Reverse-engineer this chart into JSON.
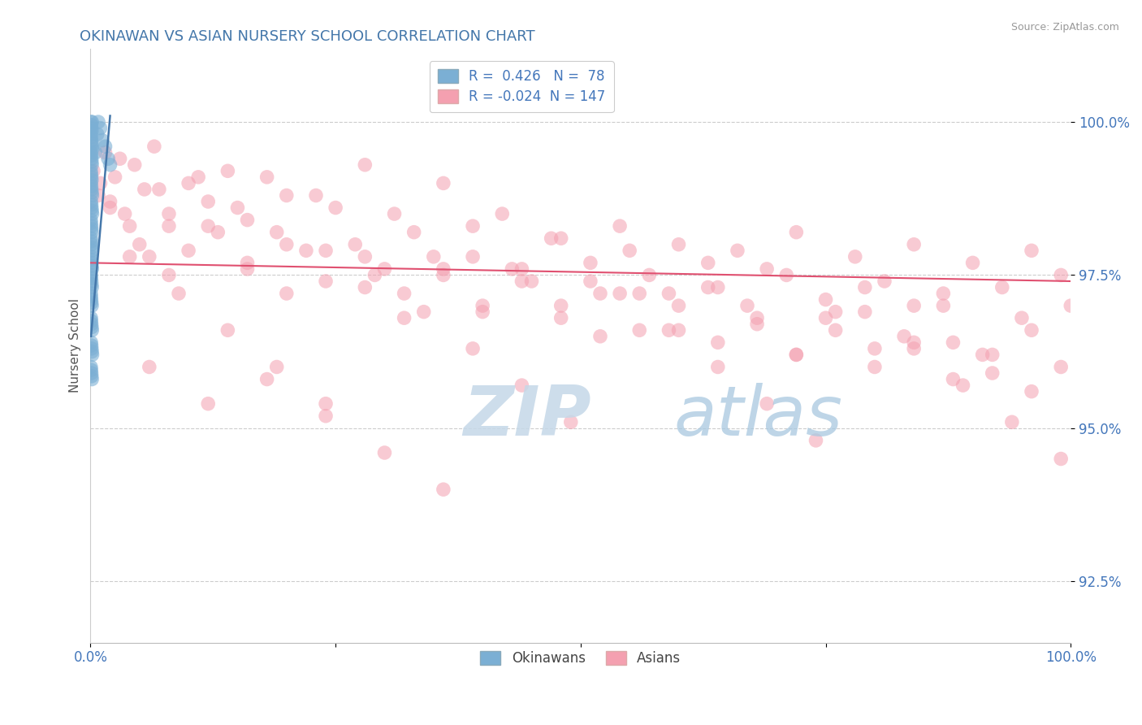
{
  "title": "OKINAWAN VS ASIAN NURSERY SCHOOL CORRELATION CHART",
  "source_text": "Source: ZipAtlas.com",
  "ylabel": "Nursery School",
  "xlim": [
    0.0,
    100.0
  ],
  "ylim": [
    91.5,
    101.2
  ],
  "yticks": [
    92.5,
    95.0,
    97.5,
    100.0
  ],
  "ytick_labels": [
    "92.5%",
    "95.0%",
    "97.5%",
    "100.0%"
  ],
  "xticks": [
    0.0,
    25.0,
    50.0,
    75.0,
    100.0
  ],
  "xtick_labels": [
    "0.0%",
    "",
    "",
    "",
    "100.0%"
  ],
  "legend_blue_r": "0.426",
  "legend_blue_n": "78",
  "legend_pink_r": "-0.024",
  "legend_pink_n": "147",
  "blue_color": "#7BAFD4",
  "pink_color": "#F4A0B0",
  "trend_blue_color": "#4477AA",
  "trend_pink_color": "#E05070",
  "watermark_color": "#B8D4E8",
  "title_color": "#4477AA",
  "axis_label_color": "#555555",
  "tick_label_color": "#4477BB",
  "grid_color": "#CCCCCC",
  "background_color": "#FFFFFF",
  "blue_dots_x": [
    0.05,
    0.08,
    0.1,
    0.12,
    0.15,
    0.05,
    0.07,
    0.09,
    0.11,
    0.13,
    0.06,
    0.08,
    0.1,
    0.12,
    0.15,
    0.04,
    0.07,
    0.09,
    0.11,
    0.14,
    0.05,
    0.08,
    0.1,
    0.13,
    0.16,
    0.06,
    0.09,
    0.11,
    0.14,
    0.17,
    0.04,
    0.06,
    0.08,
    0.1,
    0.12,
    0.05,
    0.07,
    0.09,
    0.11,
    0.13,
    0.06,
    0.08,
    0.1,
    0.12,
    0.15,
    0.05,
    0.07,
    0.09,
    0.11,
    0.14,
    0.04,
    0.06,
    0.08,
    0.1,
    0.13,
    0.05,
    0.07,
    0.09,
    0.12,
    0.15,
    0.06,
    0.09,
    0.11,
    0.14,
    0.17,
    0.04,
    0.07,
    0.09,
    0.11,
    0.14,
    0.5,
    0.7,
    0.8,
    1.0,
    1.2,
    1.5,
    1.8,
    2.0
  ],
  "blue_dots_y": [
    100.0,
    99.95,
    99.9,
    99.85,
    100.0,
    99.8,
    99.75,
    99.7,
    99.65,
    99.6,
    99.5,
    99.45,
    99.4,
    99.35,
    99.55,
    99.2,
    99.15,
    99.1,
    99.05,
    99.3,
    99.0,
    98.95,
    98.9,
    98.85,
    98.8,
    98.7,
    98.65,
    98.6,
    98.55,
    98.5,
    98.4,
    98.35,
    98.3,
    98.25,
    98.2,
    98.1,
    98.05,
    98.0,
    97.95,
    97.9,
    97.8,
    97.75,
    97.7,
    97.65,
    97.6,
    97.5,
    97.45,
    97.4,
    97.35,
    97.3,
    97.2,
    97.15,
    97.1,
    97.05,
    97.0,
    96.8,
    96.75,
    96.7,
    96.65,
    96.6,
    96.4,
    96.35,
    96.3,
    96.25,
    96.2,
    96.0,
    95.95,
    95.9,
    95.85,
    95.8,
    99.5,
    99.8,
    100.0,
    99.9,
    99.7,
    99.6,
    99.4,
    99.3
  ],
  "pink_dots_x": [
    0.3,
    0.8,
    1.5,
    2.5,
    3.5,
    4.5,
    5.5,
    6.5,
    8.0,
    10.0,
    12.0,
    14.0,
    16.0,
    18.0,
    20.0,
    22.0,
    25.0,
    28.0,
    30.0,
    33.0,
    36.0,
    39.0,
    42.0,
    45.0,
    48.0,
    51.0,
    54.0,
    57.0,
    60.0,
    63.0,
    66.0,
    69.0,
    72.0,
    75.0,
    78.0,
    81.0,
    84.0,
    87.0,
    90.0,
    93.0,
    96.0,
    99.0,
    100.0,
    1.0,
    2.0,
    4.0,
    6.0,
    8.0,
    10.0,
    13.0,
    16.0,
    20.0,
    24.0,
    28.0,
    32.0,
    36.0,
    40.0,
    44.0,
    48.0,
    52.0,
    56.0,
    60.0,
    64.0,
    68.0,
    72.0,
    76.0,
    80.0,
    84.0,
    88.0,
    92.0,
    96.0,
    2.0,
    5.0,
    8.0,
    12.0,
    16.0,
    20.0,
    24.0,
    28.0,
    32.0,
    36.0,
    40.0,
    44.0,
    48.0,
    52.0,
    56.0,
    60.0,
    64.0,
    68.0,
    72.0,
    76.0,
    80.0,
    84.0,
    88.0,
    92.0,
    96.0,
    3.0,
    7.0,
    11.0,
    15.0,
    19.0,
    23.0,
    27.0,
    31.0,
    35.0,
    39.0,
    43.0,
    47.0,
    51.0,
    55.0,
    59.0,
    63.0,
    67.0,
    71.0,
    75.0,
    79.0,
    83.0,
    87.0,
    91.0,
    95.0,
    99.0,
    4.0,
    9.0,
    14.0,
    19.0,
    24.0,
    29.0,
    34.0,
    39.0,
    44.0,
    49.0,
    54.0,
    59.0,
    64.0,
    69.0,
    74.0,
    79.0,
    84.0,
    89.0,
    94.0,
    99.0,
    6.0,
    12.0,
    18.0,
    24.0,
    30.0,
    36.0
  ],
  "pink_dots_y": [
    99.2,
    98.8,
    99.5,
    99.1,
    98.5,
    99.3,
    98.9,
    99.6,
    98.3,
    99.0,
    98.7,
    99.2,
    98.4,
    99.1,
    98.8,
    97.9,
    98.6,
    99.3,
    97.6,
    98.2,
    99.0,
    97.8,
    98.5,
    97.4,
    98.1,
    97.7,
    98.3,
    97.5,
    98.0,
    97.3,
    97.9,
    97.6,
    98.2,
    97.1,
    97.8,
    97.4,
    98.0,
    97.2,
    97.7,
    97.3,
    97.9,
    97.5,
    97.0,
    99.0,
    98.6,
    98.3,
    97.8,
    98.5,
    97.9,
    98.2,
    97.6,
    98.0,
    97.4,
    97.8,
    97.2,
    97.6,
    97.0,
    97.4,
    96.8,
    97.2,
    96.6,
    97.0,
    96.4,
    96.8,
    96.2,
    96.6,
    96.0,
    96.4,
    95.8,
    96.2,
    95.6,
    98.7,
    98.0,
    97.5,
    98.3,
    97.7,
    97.2,
    97.9,
    97.3,
    96.8,
    97.5,
    96.9,
    97.6,
    97.0,
    96.5,
    97.2,
    96.6,
    97.3,
    96.7,
    96.2,
    96.9,
    96.3,
    97.0,
    96.4,
    95.9,
    96.6,
    99.4,
    98.9,
    99.1,
    98.6,
    98.2,
    98.8,
    98.0,
    98.5,
    97.8,
    98.3,
    97.6,
    98.1,
    97.4,
    97.9,
    97.2,
    97.7,
    97.0,
    97.5,
    96.8,
    97.3,
    96.5,
    97.0,
    96.2,
    96.8,
    96.0,
    97.8,
    97.2,
    96.6,
    96.0,
    95.4,
    97.5,
    96.9,
    96.3,
    95.7,
    95.1,
    97.2,
    96.6,
    96.0,
    95.4,
    94.8,
    96.9,
    96.3,
    95.7,
    95.1,
    94.5,
    96.0,
    95.4,
    95.8,
    95.2,
    94.6,
    94.0
  ],
  "pink_trend_y_start": 97.7,
  "pink_trend_y_end": 97.4,
  "blue_trend_x_start": 0.05,
  "blue_trend_x_end": 2.0,
  "blue_trend_y_start": 96.5,
  "blue_trend_y_end": 100.1
}
